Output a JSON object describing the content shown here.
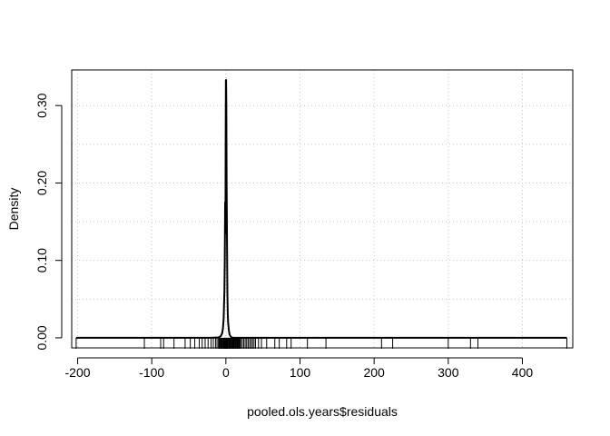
{
  "chart_data": {
    "type": "line",
    "title": "",
    "xlabel": "pooled.ols.years$residuals",
    "ylabel": "Density",
    "xlim": [
      -208,
      468
    ],
    "ylim": [
      -0.013,
      0.346
    ],
    "x_ticks": [
      -200,
      -100,
      0,
      100,
      200,
      300,
      400
    ],
    "x_tick_labels": [
      "-200",
      "-100",
      "0",
      "100",
      "200",
      "300",
      "400"
    ],
    "y_ticks": [
      0.0,
      0.1,
      0.2,
      0.3
    ],
    "y_tick_labels": [
      "0.00",
      "0.10",
      "0.20",
      "0.30"
    ],
    "grid": true,
    "legend": "none",
    "line_color": "#000000",
    "series": [
      {
        "x": [
          -202,
          -60,
          -20,
          -10,
          -7,
          -5,
          -4,
          -3,
          -2,
          -1.5,
          -1,
          -0.6,
          -0.3,
          0,
          0.3,
          0.6,
          1,
          1.5,
          2,
          2.5,
          3,
          4,
          5,
          7,
          10,
          20,
          60,
          200,
          460
        ],
        "y": [
          0,
          0,
          0,
          0.0005,
          0.002,
          0.006,
          0.012,
          0.025,
          0.06,
          0.1,
          0.175,
          0.135,
          0.25,
          0.333,
          0.333,
          0.3,
          0.2,
          0.128,
          0.06,
          0.032,
          0.02,
          0.01,
          0.004,
          0.001,
          0,
          0,
          0,
          0,
          0
        ]
      }
    ],
    "rug": [
      -202,
      -110,
      -88,
      -84,
      -70,
      -55,
      -48,
      -42,
      -36,
      -32,
      -28,
      -24,
      -20,
      -17,
      -14,
      -12,
      -10,
      -9,
      -8,
      -7,
      -6,
      -5,
      -4,
      -3,
      -2.5,
      -2,
      -1.5,
      -1,
      -0.5,
      0,
      0.5,
      1,
      1.5,
      2,
      2.5,
      3,
      4,
      5,
      6,
      7,
      8,
      9,
      10,
      11,
      12,
      13,
      14,
      15,
      16,
      17,
      18,
      19,
      20,
      22,
      24,
      26,
      28,
      30,
      32,
      34,
      36,
      38,
      40,
      44,
      48,
      55,
      66,
      72,
      82,
      88,
      110,
      135,
      210,
      225,
      300,
      330,
      340,
      460
    ]
  }
}
